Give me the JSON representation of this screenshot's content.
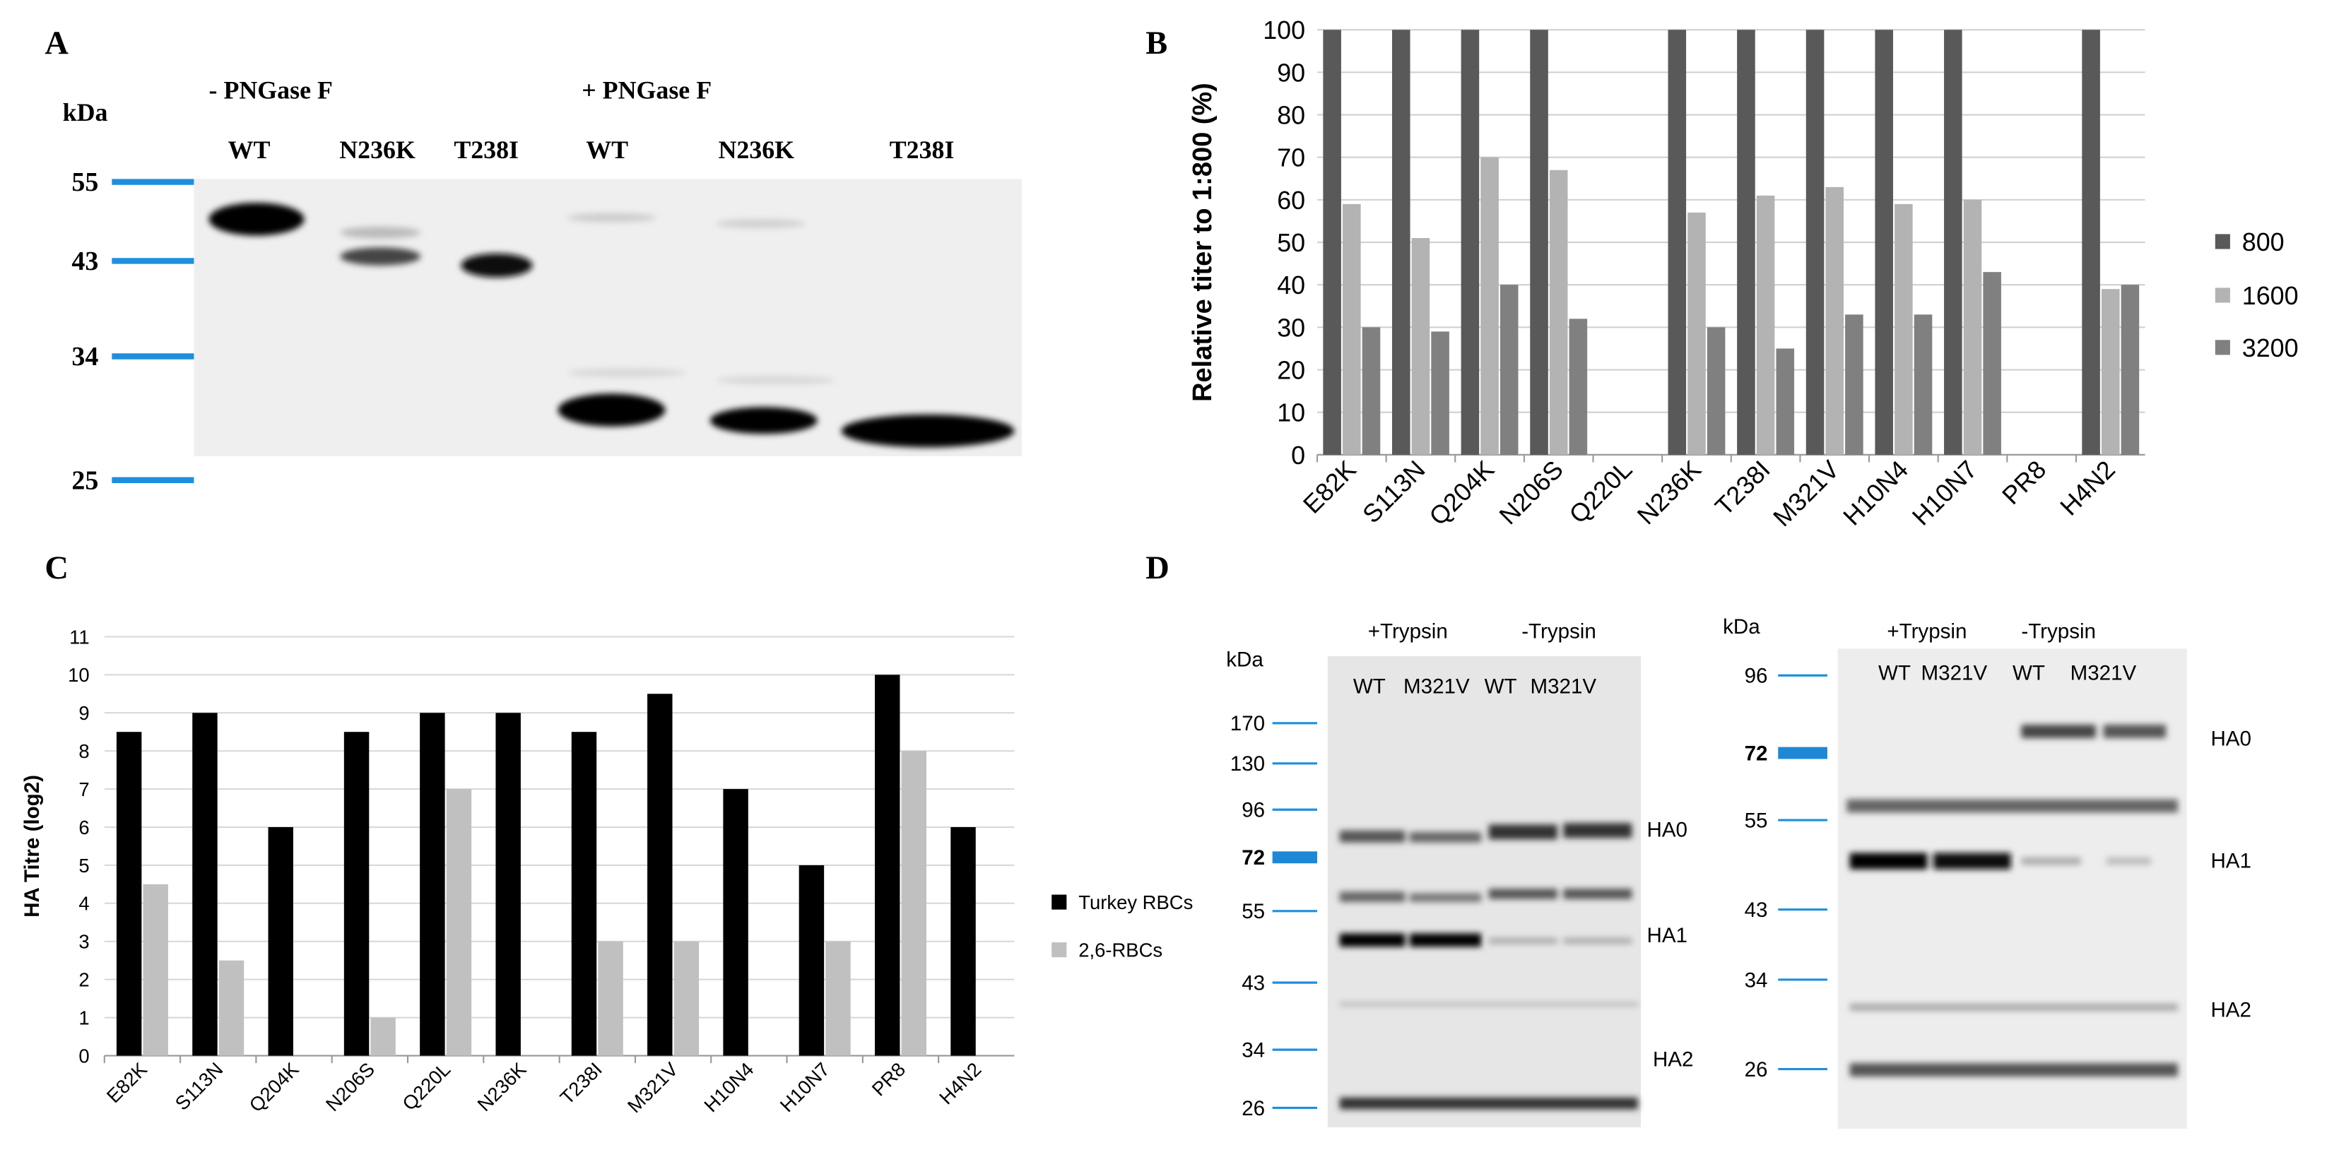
{
  "panel_labels": [
    "A",
    "B",
    "C",
    "D"
  ],
  "blot_a": {
    "unit": "kDa",
    "conditions": [
      "- PNGase F",
      "+ PNGase F"
    ],
    "lanes": [
      "WT",
      "N236K",
      "T238I",
      "WT",
      "N236K",
      "T238I"
    ],
    "markers": [
      "55",
      "43",
      "34",
      "25"
    ]
  },
  "blot_d_left": {
    "unit": "kDa",
    "conditions": [
      "+Trypsin",
      "-Trypsin"
    ],
    "lanes": [
      "WT",
      "M321V",
      "WT",
      "M321V"
    ],
    "markers": [
      "170",
      "130",
      "96",
      "72",
      "55",
      "43",
      "34",
      "26"
    ],
    "bands": [
      "HA0",
      "HA1",
      "HA2"
    ]
  },
  "blot_d_right": {
    "unit": "kDa",
    "conditions": [
      "+Trypsin",
      "-Trypsin"
    ],
    "lanes": [
      "WT",
      "M321V",
      "WT",
      "M321V"
    ],
    "markers": [
      "96",
      "72",
      "55",
      "43",
      "34",
      "26"
    ],
    "bands": [
      "HA0",
      "HA1",
      "HA2"
    ]
  },
  "chart_data": [
    {
      "type": "bar",
      "y_label": "Relative titer to 1:800 (%)",
      "categories": [
        "E82K",
        "S113N",
        "Q204K",
        "N206S",
        "Q220L",
        "N236K",
        "T238I",
        "M321V",
        "H10N4",
        "H10N7",
        "PR8",
        "H4N2"
      ],
      "series": [
        {
          "name": "800",
          "color": "#595959",
          "values": [
            100,
            100,
            100,
            100,
            null,
            100,
            100,
            100,
            100,
            100,
            null,
            100
          ]
        },
        {
          "name": "1600",
          "color": "#b3b3b3",
          "values": [
            59,
            51,
            70,
            67,
            null,
            57,
            61,
            63,
            59,
            60,
            null,
            39
          ]
        },
        {
          "name": "3200",
          "color": "#808080",
          "values": [
            30,
            29,
            40,
            32,
            null,
            30,
            25,
            33,
            33,
            43,
            null,
            40
          ]
        }
      ],
      "ylim": [
        0,
        100
      ],
      "yticks": [
        0,
        10,
        20,
        30,
        40,
        50,
        60,
        70,
        80,
        90,
        100
      ],
      "grid": true,
      "legend": "right"
    },
    {
      "type": "bar",
      "y_label": "HA Titre (log2)",
      "categories": [
        "E82K",
        "S113N",
        "Q204K",
        "N206S",
        "Q220L",
        "N236K",
        "T238I",
        "M321V",
        "H10N4",
        "H10N7",
        "PR8",
        "H4N2"
      ],
      "series": [
        {
          "name": "Turkey RBCs",
          "color": "#000000",
          "values": [
            8.5,
            9,
            6,
            8.5,
            9,
            9,
            8.5,
            9.5,
            7,
            5,
            10,
            6
          ]
        },
        {
          "name": "2,6-RBCs",
          "color": "#c0c0c0",
          "values": [
            4.5,
            2.5,
            null,
            1,
            7,
            null,
            3,
            3,
            null,
            3,
            8,
            null
          ]
        }
      ],
      "ylim": [
        0,
        11
      ],
      "yticks": [
        0,
        1,
        2,
        3,
        4,
        5,
        6,
        7,
        8,
        9,
        10,
        11
      ],
      "grid": true,
      "legend": "right"
    }
  ]
}
